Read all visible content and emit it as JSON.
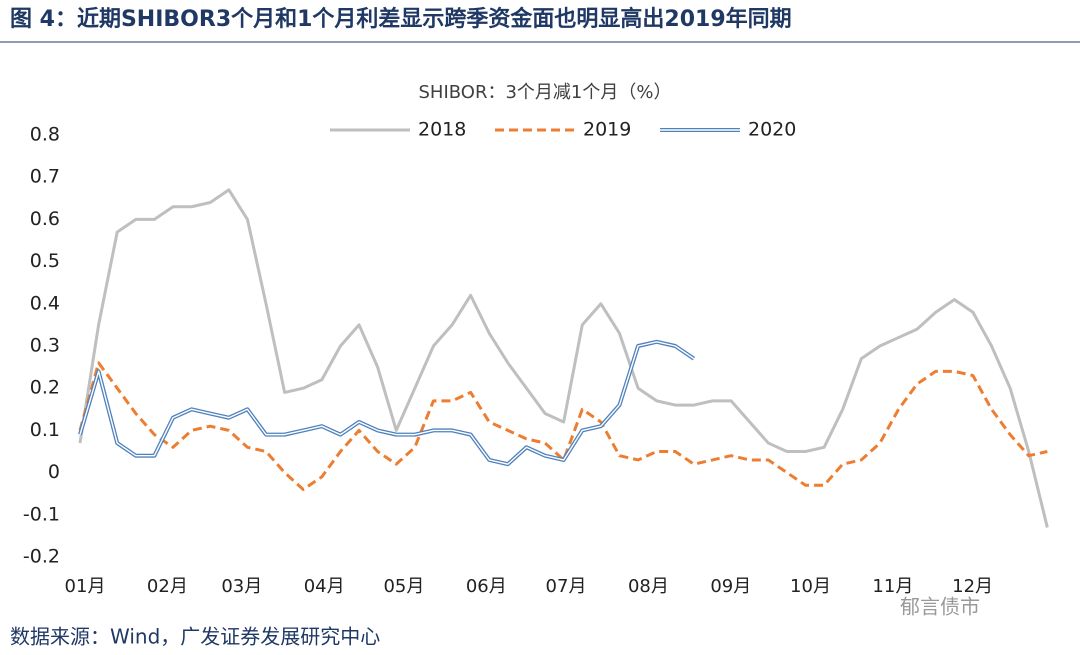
{
  "title": "图 4：近期SHIBOR3个月和1个月利差显示跨季资金面也明显高出2019年同期",
  "source": "数据来源：Wind，广发证券发展研究中心",
  "watermark": "郁言债市",
  "chart_data": {
    "type": "line",
    "title": "SHIBOR：3个月减1个月（%）",
    "legend": "top",
    "grid": false,
    "x": [
      0,
      7,
      14,
      21,
      28,
      35,
      42,
      49,
      56,
      63,
      70,
      77,
      84,
      91,
      98,
      105,
      112,
      119,
      126,
      133,
      140,
      147,
      154,
      161,
      168,
      175,
      182,
      189,
      196,
      203,
      210,
      217,
      224,
      231,
      238,
      245,
      252,
      259,
      266,
      273,
      280,
      287,
      294,
      301,
      308,
      315,
      322,
      329,
      336,
      343,
      350,
      357,
      364
    ],
    "xlim": [
      0,
      365
    ],
    "xticks": [
      {
        "value": 0,
        "label": "01月"
      },
      {
        "value": 31,
        "label": "02月"
      },
      {
        "value": 59,
        "label": "03月"
      },
      {
        "value": 90,
        "label": "04月"
      },
      {
        "value": 120,
        "label": "05月"
      },
      {
        "value": 151,
        "label": "06月"
      },
      {
        "value": 181,
        "label": "07月"
      },
      {
        "value": 212,
        "label": "08月"
      },
      {
        "value": 243,
        "label": "09月"
      },
      {
        "value": 273,
        "label": "10月"
      },
      {
        "value": 304,
        "label": "11月"
      },
      {
        "value": 334,
        "label": "12月"
      }
    ],
    "ylim": [
      -0.2,
      0.8
    ],
    "yticks": [
      -0.2,
      -0.1,
      0,
      0.1,
      0.2,
      0.3,
      0.4,
      0.5,
      0.6,
      0.7,
      0.8
    ],
    "series": [
      {
        "name": "2018",
        "color": "#bfbfbf",
        "line_style": "solid",
        "values": [
          0.07,
          0.35,
          0.57,
          0.6,
          0.6,
          0.63,
          0.63,
          0.64,
          0.67,
          0.6,
          0.4,
          0.19,
          0.2,
          0.22,
          0.3,
          0.35,
          0.25,
          0.1,
          0.2,
          0.3,
          0.35,
          0.42,
          0.33,
          0.26,
          0.2,
          0.14,
          0.12,
          0.35,
          0.4,
          0.33,
          0.2,
          0.17,
          0.16,
          0.16,
          0.17,
          0.17,
          0.12,
          0.07,
          0.05,
          0.05,
          0.06,
          0.15,
          0.27,
          0.3,
          0.32,
          0.34,
          0.38,
          0.41,
          0.38,
          0.3,
          0.2,
          0.05,
          -0.13
        ]
      },
      {
        "name": "2019",
        "color": "#ed7d31",
        "line_style": "dashed",
        "values": [
          0.1,
          0.26,
          0.2,
          0.14,
          0.09,
          0.06,
          0.1,
          0.11,
          0.1,
          0.06,
          0.05,
          0.0,
          -0.04,
          -0.01,
          0.05,
          0.1,
          0.05,
          0.02,
          0.06,
          0.17,
          0.17,
          0.19,
          0.12,
          0.1,
          0.08,
          0.07,
          0.03,
          0.15,
          0.12,
          0.04,
          0.03,
          0.05,
          0.05,
          0.02,
          0.03,
          0.04,
          0.03,
          0.03,
          0.0,
          -0.03,
          -0.03,
          0.02,
          0.03,
          0.07,
          0.15,
          0.21,
          0.24,
          0.24,
          0.23,
          0.15,
          0.09,
          0.04,
          0.05
        ]
      },
      {
        "name": "2020",
        "color": "#4f81bd",
        "line_style": "double",
        "values": [
          0.09,
          0.24,
          0.07,
          0.04,
          0.04,
          0.13,
          0.15,
          0.14,
          0.13,
          0.15,
          0.09,
          0.09,
          0.1,
          0.11,
          0.09,
          0.12,
          0.1,
          0.09,
          0.09,
          0.1,
          0.1,
          0.09,
          0.03,
          0.02,
          0.06,
          0.04,
          0.03,
          0.1,
          0.11,
          0.16,
          0.3,
          0.31,
          0.3,
          0.27,
          null,
          null,
          null,
          null,
          null,
          null,
          null,
          null,
          null,
          null,
          null,
          null,
          null,
          null,
          null,
          null,
          null,
          null,
          null
        ]
      }
    ]
  }
}
